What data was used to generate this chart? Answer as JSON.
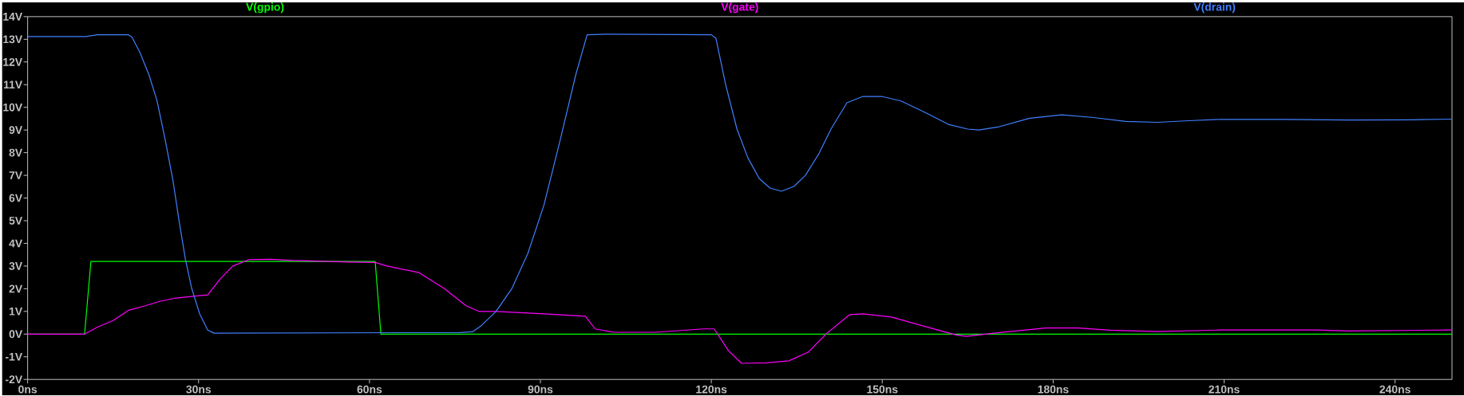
{
  "chart_data": {
    "type": "line",
    "series": [
      {
        "name": "V(gpio)",
        "color": "#00ff00",
        "x": [
          0,
          10,
          11.1,
          61,
          62,
          250
        ],
        "values": [
          0,
          0,
          3.2,
          3.2,
          0,
          0
        ]
      },
      {
        "name": "V(gate)",
        "color": "#ff00ff",
        "x": [
          0,
          10,
          12.2,
          15,
          17.7,
          20.5,
          23.3,
          26,
          28.8,
          31.6,
          33.8,
          36,
          38.8,
          42.6,
          46.5,
          56.5,
          61,
          63.1,
          68.7,
          73.1,
          77,
          79.2,
          82.3,
          85,
          90.6,
          97.9,
          99.6,
          102.9,
          110.2,
          118.6,
          120.5,
          123,
          125.3,
          129.7,
          133.6,
          137,
          140.3,
          144.3,
          146.6,
          151.6,
          157.7,
          162.8,
          164.7,
          170.3,
          178.7,
          184.3,
          189.9,
          198.3,
          209.4,
          226.2,
          231.8,
          249.9
        ],
        "values": [
          0,
          0,
          0.3,
          0.6,
          1.05,
          1.24,
          1.45,
          1.59,
          1.66,
          1.73,
          2.43,
          3.0,
          3.28,
          3.3,
          3.25,
          3.18,
          3.16,
          3.0,
          2.71,
          2.01,
          1.24,
          1.0,
          1.0,
          0.96,
          0.89,
          0.79,
          0.23,
          0.08,
          0.08,
          0.23,
          0.23,
          -0.73,
          -1.29,
          -1.27,
          -1.18,
          -0.8,
          0.04,
          0.86,
          0.89,
          0.75,
          0.32,
          -0.03,
          -0.1,
          0.06,
          0.27,
          0.27,
          0.17,
          0.11,
          0.18,
          0.18,
          0.14,
          0.18
        ]
      },
      {
        "name": "V(drain)",
        "color": "#4080ff",
        "x": [
          0,
          10.2,
          12.2,
          17.7,
          18.3,
          19.7,
          21.3,
          22.7,
          24.1,
          25.5,
          26.6,
          27.7,
          28.8,
          30.2,
          31.6,
          32.7,
          75.9,
          78.1,
          79.7,
          82.2,
          85,
          87.8,
          90.6,
          93.4,
          96.2,
          98.2,
          101.8,
          120,
          120.8,
          122.5,
          124.5,
          126.4,
          128.4,
          130.3,
          132.3,
          134.5,
          136.5,
          138.8,
          141,
          143.8,
          146.6,
          149.9,
          153.3,
          157.7,
          161.6,
          165,
          167,
          170.3,
          175.9,
          181.5,
          187.1,
          192.7,
          198.3,
          203.8,
          209.4,
          220.6,
          231.8,
          243,
          249.9
        ],
        "values": [
          13.12,
          13.12,
          13.2,
          13.2,
          13.1,
          12.42,
          11.43,
          10.3,
          8.62,
          6.79,
          4.96,
          3.28,
          2.01,
          0.89,
          0.18,
          0.04,
          0.07,
          0.1,
          0.39,
          1.0,
          2.01,
          3.56,
          5.67,
          8.48,
          11.43,
          13.2,
          13.23,
          13.2,
          13.05,
          11.01,
          9.04,
          7.78,
          6.86,
          6.44,
          6.3,
          6.51,
          7.0,
          7.92,
          9.04,
          10.2,
          10.48,
          10.48,
          10.28,
          9.75,
          9.25,
          9.04,
          9.0,
          9.13,
          9.52,
          9.67,
          9.55,
          9.38,
          9.34,
          9.41,
          9.47,
          9.47,
          9.44,
          9.45,
          9.48
        ]
      }
    ],
    "xlim": [
      0,
      250
    ],
    "ylim": [
      -2,
      14
    ],
    "xticks": [
      {
        "value": 0,
        "label": "0ns"
      },
      {
        "value": 30,
        "label": "30ns"
      },
      {
        "value": 60,
        "label": "60ns"
      },
      {
        "value": 90,
        "label": "90ns"
      },
      {
        "value": 120,
        "label": "120ns"
      },
      {
        "value": 150,
        "label": "150ns"
      },
      {
        "value": 180,
        "label": "180ns"
      },
      {
        "value": 210,
        "label": "210ns"
      },
      {
        "value": 240,
        "label": "240ns"
      }
    ],
    "yticks": [
      {
        "value": -2,
        "label": "-2V"
      },
      {
        "value": -1,
        "label": "-1V"
      },
      {
        "value": 0,
        "label": "0V"
      },
      {
        "value": 1,
        "label": "1V"
      },
      {
        "value": 2,
        "label": "2V"
      },
      {
        "value": 3,
        "label": "3V"
      },
      {
        "value": 4,
        "label": "4V"
      },
      {
        "value": 5,
        "label": "5V"
      },
      {
        "value": 6,
        "label": "6V"
      },
      {
        "value": 7,
        "label": "7V"
      },
      {
        "value": 8,
        "label": "8V"
      },
      {
        "value": 9,
        "label": "9V"
      },
      {
        "value": 10,
        "label": "10V"
      },
      {
        "value": 11,
        "label": "11V"
      },
      {
        "value": 12,
        "label": "12V"
      },
      {
        "value": 13,
        "label": "13V"
      },
      {
        "value": 14,
        "label": "14V"
      }
    ],
    "legend": "top"
  }
}
